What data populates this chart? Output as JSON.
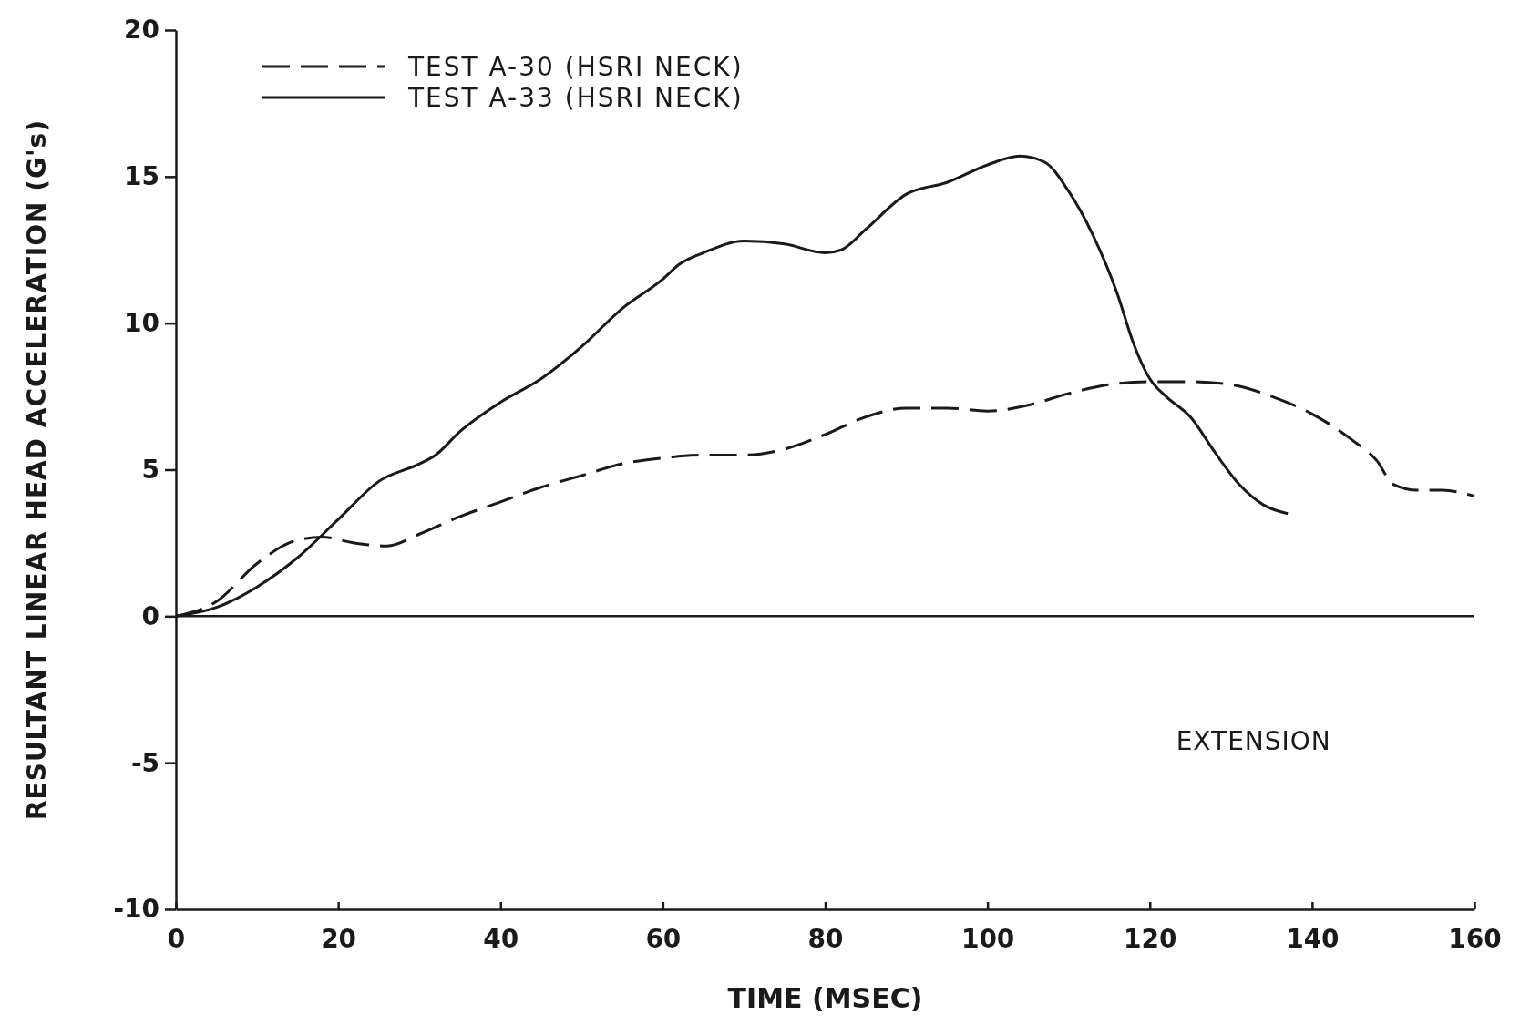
{
  "chart_data": {
    "type": "line",
    "xlabel": "TIME (MSEC)",
    "ylabel": "RESULTANT LINEAR HEAD ACCELERATION (G's)",
    "xlim": [
      0,
      160
    ],
    "xticks": [
      0,
      20,
      40,
      60,
      80,
      100,
      120,
      140,
      160
    ],
    "ylim": [
      -10,
      20
    ],
    "yticks": [
      -10,
      -5,
      0,
      5,
      10,
      15,
      20
    ],
    "grid": false,
    "legend": "top left",
    "marker": "none",
    "ref_lines": [
      {
        "axis": "y",
        "value": 0,
        "color": "#1a1a1a"
      }
    ],
    "annotations": [
      "EXTENSION"
    ],
    "series": [
      {
        "name": "TEST A-30 (HSRI NECK)",
        "color": "#1a1a1a",
        "line_style": "dashed",
        "x": [
          0,
          5,
          10,
          15,
          18,
          22,
          26,
          30,
          35,
          40,
          45,
          50,
          55,
          60,
          65,
          70,
          75,
          80,
          85,
          90,
          95,
          100,
          105,
          110,
          115,
          120,
          125,
          130,
          135,
          140,
          145,
          148,
          150,
          153,
          156,
          160
        ],
        "values": [
          0,
          0.5,
          1.8,
          2.6,
          2.7,
          2.5,
          2.4,
          2.8,
          3.4,
          3.9,
          4.4,
          4.8,
          5.2,
          5.4,
          5.5,
          5.5,
          5.7,
          6.2,
          6.8,
          7.1,
          7.1,
          7.0,
          7.2,
          7.6,
          7.9,
          8.0,
          8.0,
          7.9,
          7.5,
          6.9,
          6.0,
          5.3,
          4.5,
          4.3,
          4.3,
          4.1
        ]
      },
      {
        "name": "TEST A-33 (HSRI NECK)",
        "color": "#1a1a1a",
        "line_style": "solid",
        "x": [
          0,
          5,
          10,
          15,
          20,
          25,
          30,
          32,
          35,
          40,
          45,
          50,
          55,
          60,
          62,
          65,
          70,
          75,
          80,
          82,
          85,
          90,
          95,
          100,
          104,
          107,
          110,
          113,
          116,
          118,
          120,
          122,
          125,
          128,
          131,
          134,
          137
        ],
        "values": [
          0,
          0.3,
          1.0,
          2.0,
          3.3,
          4.6,
          5.2,
          5.5,
          6.3,
          7.3,
          8.1,
          9.2,
          10.5,
          11.5,
          12.0,
          12.4,
          12.8,
          12.7,
          12.4,
          12.5,
          13.2,
          14.4,
          14.8,
          15.4,
          15.7,
          15.5,
          14.5,
          13.0,
          11.0,
          9.3,
          8.1,
          7.5,
          6.8,
          5.6,
          4.5,
          3.8,
          3.5
        ]
      }
    ]
  }
}
